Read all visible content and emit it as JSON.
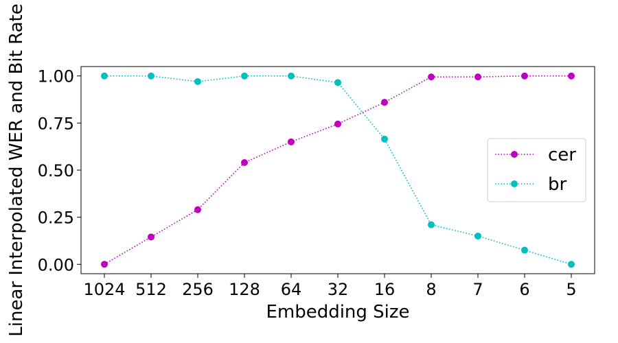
{
  "chart_data": {
    "type": "line",
    "xlabel": "Embedding Size",
    "ylabel": "Linear Interpolated WER and Bit Rate",
    "categories": [
      "1024",
      "512",
      "256",
      "128",
      "64",
      "32",
      "16",
      "8",
      "7",
      "6",
      "5"
    ],
    "yticks": [
      "0.00",
      "0.25",
      "0.50",
      "0.75",
      "1.00"
    ],
    "ylim": [
      -0.05,
      1.05
    ],
    "grid": false,
    "legend_position": "center-right",
    "series": [
      {
        "name": "cer",
        "color": "#bf00bf",
        "marker": "circle",
        "linestyle": "dotted",
        "values": [
          0.0,
          0.145,
          0.29,
          0.54,
          0.65,
          0.745,
          0.86,
          0.995,
          0.995,
          1.0,
          1.0
        ]
      },
      {
        "name": "br",
        "color": "#00bfbf",
        "marker": "circle",
        "linestyle": "dotted",
        "values": [
          1.0,
          1.0,
          0.97,
          1.0,
          1.0,
          0.965,
          0.665,
          0.21,
          0.15,
          0.075,
          0.0
        ]
      }
    ]
  }
}
